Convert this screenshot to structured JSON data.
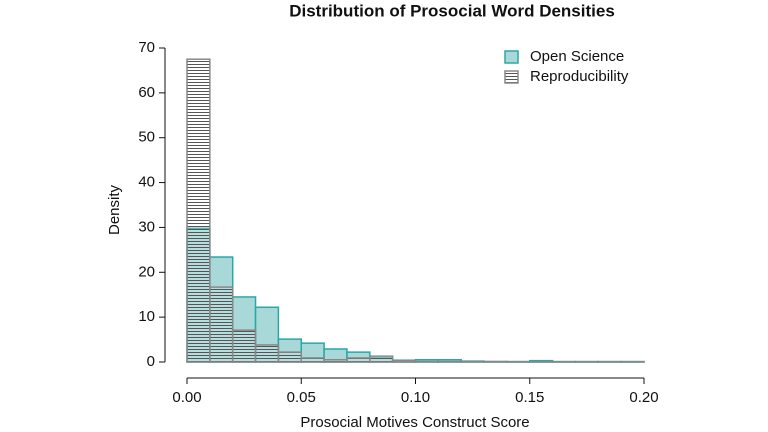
{
  "chart_data": {
    "type": "histogram",
    "title": "Distribution of Prosocial Word Densities",
    "x_label": "Prosocial Motives Construct Score",
    "y_label": "Density",
    "bins": [
      0,
      0.01,
      0.02,
      0.03,
      0.04,
      0.05,
      0.06,
      0.07,
      0.08,
      0.09,
      0.1,
      0.11,
      0.12,
      0.13,
      0.14,
      0.15,
      0.16,
      0.17,
      0.18,
      0.19,
      0.2
    ],
    "series": [
      {
        "name": "Open Science",
        "color": "#2aa7a7",
        "fill": "#a9d8d8",
        "values": [
          29.8,
          23.4,
          14.5,
          12.2,
          5.1,
          4.2,
          2.9,
          2.2,
          0.9,
          0.4,
          0.5,
          0.5,
          0.2,
          0.1,
          0.1,
          0.3,
          0.1,
          0.1,
          0.1,
          0.1
        ]
      },
      {
        "name": "Reproducibility",
        "color": "#888888",
        "hatch": true,
        "values": [
          67.5,
          16.7,
          7.1,
          3.8,
          2.2,
          0.9,
          0.5,
          0.9,
          1.3,
          0.3,
          0.1,
          0.1,
          0.1,
          0.1,
          0.05,
          0.05,
          0.05,
          0.05,
          0.05,
          0.05
        ]
      }
    ],
    "xlim": [
      0,
      0.2
    ],
    "xticks": [
      {
        "value": 0,
        "label": "0.00"
      },
      {
        "value": 0.05,
        "label": "0.05"
      },
      {
        "value": 0.1,
        "label": "0.10"
      },
      {
        "value": 0.15,
        "label": "0.15"
      },
      {
        "value": 0.2,
        "label": "0.20"
      }
    ],
    "ylim": [
      0,
      70
    ],
    "yticks": [
      0,
      10,
      20,
      30,
      40,
      50,
      60,
      70
    ],
    "legend": "top-right"
  }
}
